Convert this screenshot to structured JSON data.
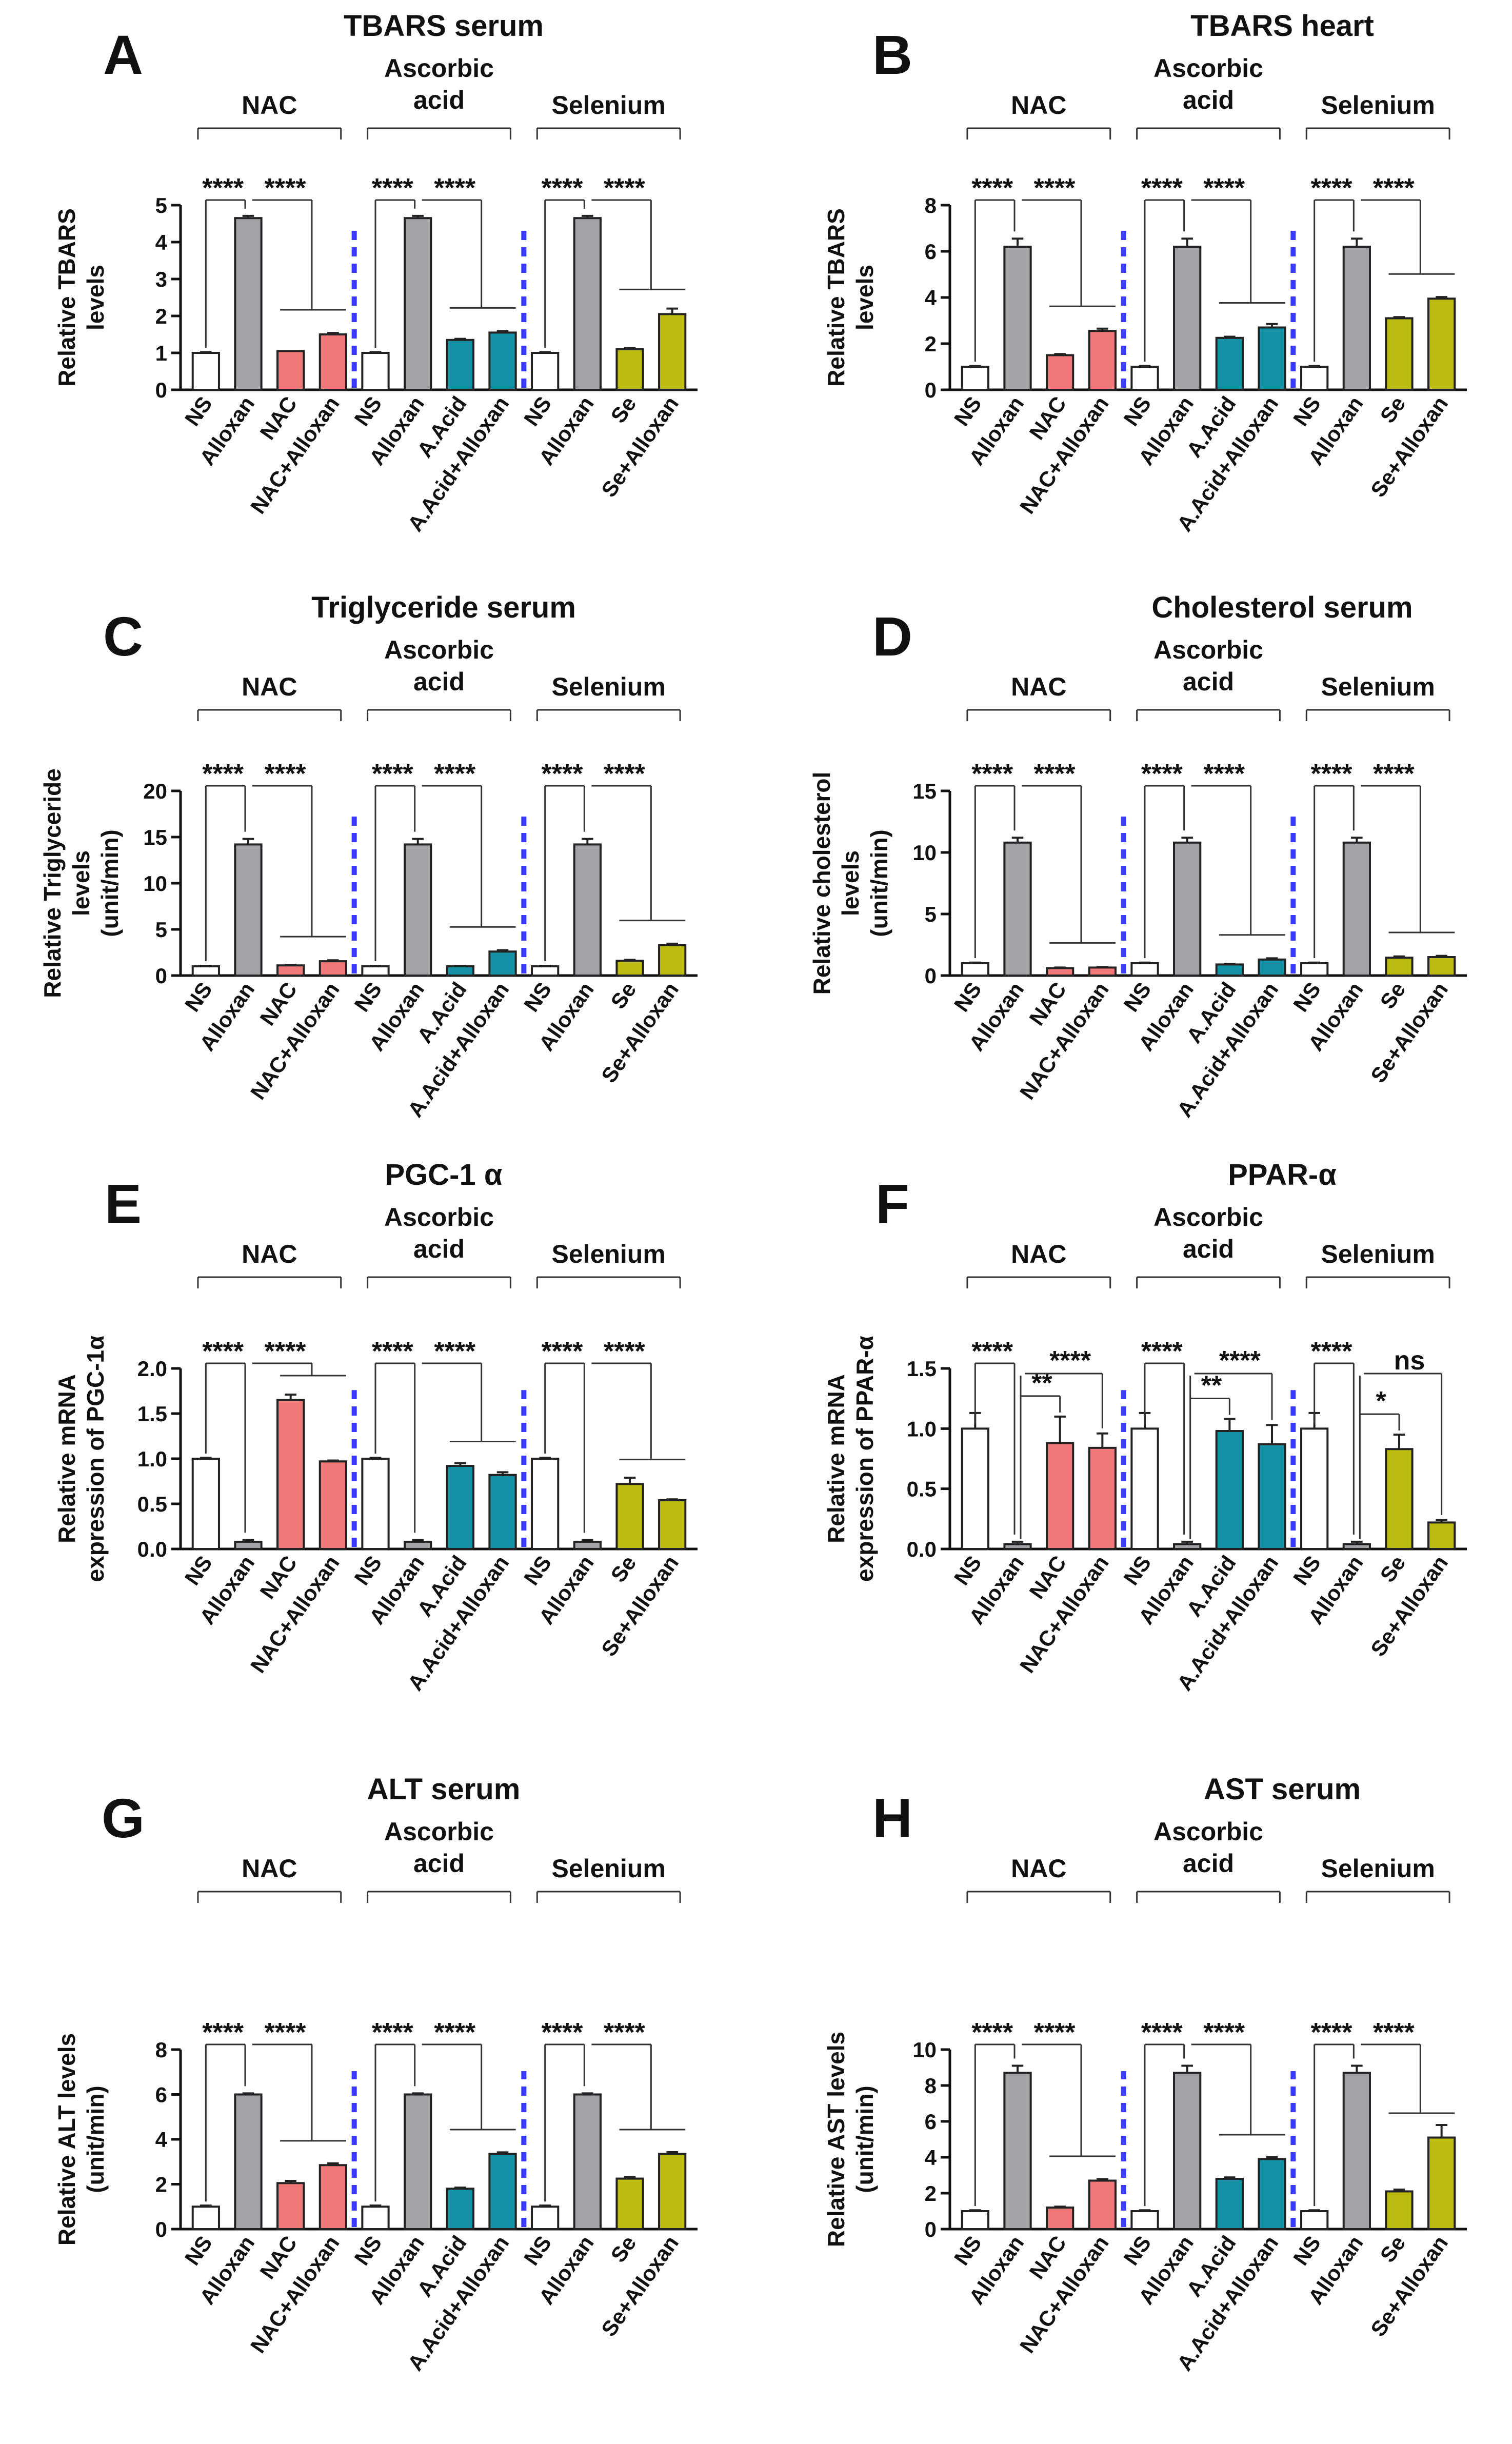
{
  "colors": {
    "NS": "#ffffff",
    "Alloxan": "#a3a3a7",
    "NAC": "#f07878",
    "NAC+Alloxan": "#f07878",
    "A.Acid": "#1591a6",
    "A.Acid+Alloxan": "#1591a6",
    "Se": "#bcbb10",
    "Se+Alloxan": "#bcbb10",
    "divider": "#3b3bff"
  },
  "chart_data": [
    {
      "panel": "A",
      "type": "bar",
      "title": "TBARS serum",
      "ylabel": [
        "Relative TBARS",
        "levels"
      ],
      "ylim": [
        0,
        5
      ],
      "yticks": [
        "0",
        "1",
        "2",
        "3",
        "4",
        "5"
      ],
      "groups": [
        "NAC",
        "Ascorbic|acid",
        "Selenium"
      ],
      "categories": [
        "NS",
        "Alloxan",
        "NAC",
        "NAC+Alloxan",
        "NS",
        "Alloxan",
        "A.Acid",
        "A.Acid+Alloxan",
        "NS",
        "Alloxan",
        "Se",
        "Se+Alloxan"
      ],
      "values": [
        1.0,
        4.65,
        1.05,
        1.5,
        1.0,
        4.65,
        1.35,
        1.55,
        1.0,
        4.65,
        1.1,
        2.05
      ],
      "errors": [
        0.02,
        0.06,
        0,
        0.04,
        0.02,
        0.06,
        0.03,
        0.04,
        0.02,
        0.06,
        0.03,
        0.15
      ],
      "stars": [
        "****",
        "****",
        "****",
        "****",
        "****",
        "****"
      ]
    },
    {
      "panel": "B",
      "type": "bar",
      "title": "TBARS heart",
      "ylabel": [
        "Relative TBARS",
        "levels"
      ],
      "ylim": [
        0,
        8
      ],
      "yticks": [
        "0",
        "2",
        "4",
        "6",
        "8"
      ],
      "groups": [
        "NAC",
        "Ascorbic|acid",
        "Selenium"
      ],
      "categories": [
        "NS",
        "Alloxan",
        "NAC",
        "NAC+Alloxan",
        "NS",
        "Alloxan",
        "A.Acid",
        "A.Acid+Alloxan",
        "NS",
        "Alloxan",
        "Se",
        "Se+Alloxan"
      ],
      "values": [
        1.0,
        6.2,
        1.5,
        2.55,
        1.0,
        6.2,
        2.25,
        2.7,
        1.0,
        6.2,
        3.1,
        3.95
      ],
      "errors": [
        0.03,
        0.35,
        0.05,
        0.1,
        0.03,
        0.35,
        0.05,
        0.15,
        0.03,
        0.35,
        0.05,
        0.07
      ],
      "stars": [
        "****",
        "****",
        "****",
        "****",
        "****",
        "****"
      ]
    },
    {
      "panel": "C",
      "type": "bar",
      "title": "Triglyceride serum",
      "ylabel": [
        "Relative Triglyceride",
        "levels",
        "(unit/min)"
      ],
      "ylim": [
        0,
        20
      ],
      "yticks": [
        "0",
        "5",
        "10",
        "15",
        "20"
      ],
      "groups": [
        "NAC",
        "Ascorbic|acid",
        "Selenium"
      ],
      "categories": [
        "NS",
        "Alloxan",
        "NAC",
        "NAC+Alloxan",
        "NS",
        "Alloxan",
        "A.Acid",
        "A.Acid+Alloxan",
        "NS",
        "Alloxan",
        "Se",
        "Se+Alloxan"
      ],
      "values": [
        1.0,
        14.2,
        1.1,
        1.55,
        1.0,
        14.2,
        1.0,
        2.6,
        1.0,
        14.2,
        1.6,
        3.3
      ],
      "errors": [
        0.05,
        0.6,
        0.05,
        0.1,
        0.05,
        0.6,
        0.05,
        0.15,
        0.05,
        0.6,
        0.1,
        0.15
      ],
      "stars": [
        "****",
        "****",
        "****",
        "****",
        "****",
        "****"
      ]
    },
    {
      "panel": "D",
      "type": "bar",
      "title": "Cholesterol serum",
      "ylabel": [
        "Relative cholesterol",
        "levels",
        "(unit/min)"
      ],
      "ylim": [
        0,
        15
      ],
      "yticks": [
        "0",
        "5",
        "10",
        "15"
      ],
      "groups": [
        "NAC",
        "Ascorbic|acid",
        "Selenium"
      ],
      "categories": [
        "NS",
        "Alloxan",
        "NAC",
        "NAC+Alloxan",
        "NS",
        "Alloxan",
        "A.Acid",
        "A.Acid+Alloxan",
        "NS",
        "Alloxan",
        "Se",
        "Se+Alloxan"
      ],
      "values": [
        1.0,
        10.8,
        0.6,
        0.65,
        1.0,
        10.8,
        0.9,
        1.3,
        1.0,
        10.8,
        1.45,
        1.5
      ],
      "errors": [
        0.05,
        0.4,
        0.05,
        0.05,
        0.05,
        0.4,
        0.05,
        0.1,
        0.05,
        0.4,
        0.1,
        0.1
      ],
      "stars": [
        "****",
        "****",
        "****",
        "****",
        "****",
        "****"
      ]
    },
    {
      "panel": "E",
      "type": "bar",
      "title": "PGC-1 α",
      "ylabel": [
        "Relative mRNA",
        "expression of PGC-1α"
      ],
      "ylim": [
        0,
        2.0
      ],
      "yticks": [
        "0.0",
        "0.5",
        "1.0",
        "1.5",
        "2.0"
      ],
      "groups": [
        "NAC",
        "Ascorbic|acid",
        "Selenium"
      ],
      "categories": [
        "NS",
        "Alloxan",
        "NAC",
        "NAC+Alloxan",
        "NS",
        "Alloxan",
        "A.Acid",
        "A.Acid+Alloxan",
        "NS",
        "Alloxan",
        "Se",
        "Se+Alloxan"
      ],
      "values": [
        1.0,
        0.08,
        1.65,
        0.97,
        1.0,
        0.08,
        0.92,
        0.82,
        1.0,
        0.08,
        0.72,
        0.54
      ],
      "errors": [
        0.01,
        0.02,
        0.06,
        0.01,
        0.01,
        0.02,
        0.03,
        0.03,
        0.01,
        0.02,
        0.07,
        0.01
      ],
      "stars": [
        "****",
        "****",
        "****",
        "****",
        "****",
        "****"
      ]
    },
    {
      "panel": "F",
      "type": "bar",
      "title": "PPAR-α",
      "ylabel": [
        "Relative mRNA",
        "expression of PPAR-α"
      ],
      "ylim": [
        0,
        1.5
      ],
      "yticks": [
        "0.0",
        "0.5",
        "1.0",
        "1.5"
      ],
      "groups": [
        "NAC",
        "Ascorbic|acid",
        "Selenium"
      ],
      "categories": [
        "NS",
        "Alloxan",
        "NAC",
        "NAC+Alloxan",
        "NS",
        "Alloxan",
        "A.Acid",
        "A.Acid+Alloxan",
        "NS",
        "Alloxan",
        "Se",
        "Se+Alloxan"
      ],
      "values": [
        1.0,
        0.04,
        0.88,
        0.84,
        1.0,
        0.04,
        0.98,
        0.87,
        1.0,
        0.04,
        0.83,
        0.22
      ],
      "errors": [
        0.13,
        0.02,
        0.22,
        0.12,
        0.13,
        0.02,
        0.1,
        0.16,
        0.13,
        0.02,
        0.12,
        0.02
      ],
      "stars": [
        "****",
        "**",
        "****",
        "****",
        "**",
        "****",
        "****",
        "*",
        "ns"
      ]
    },
    {
      "panel": "G",
      "type": "bar",
      "title": "ALT serum",
      "ylabel": [
        "Relative ALT levels",
        "(unit/min)"
      ],
      "ylim": [
        0,
        8
      ],
      "yticks": [
        "0",
        "2",
        "4",
        "6",
        "8"
      ],
      "groups": [
        "NAC",
        "Ascorbic|acid",
        "Selenium"
      ],
      "categories": [
        "NS",
        "Alloxan",
        "NAC",
        "NAC+Alloxan",
        "NS",
        "Alloxan",
        "A.Acid",
        "A.Acid+Alloxan",
        "NS",
        "Alloxan",
        "Se",
        "Se+Alloxan"
      ],
      "values": [
        1.0,
        6.0,
        2.05,
        2.85,
        1.0,
        6.0,
        1.8,
        3.35,
        1.0,
        6.0,
        2.25,
        3.35
      ],
      "errors": [
        0.05,
        0.05,
        0.1,
        0.08,
        0.05,
        0.05,
        0.05,
        0.07,
        0.05,
        0.05,
        0.07,
        0.08
      ],
      "stars": [
        "****",
        "****",
        "****",
        "****",
        "****",
        "****"
      ]
    },
    {
      "panel": "H",
      "type": "bar",
      "title": "AST serum",
      "ylabel": [
        "Relative AST levels",
        "(unit/min)"
      ],
      "ylim": [
        0,
        10
      ],
      "yticks": [
        "0",
        "2",
        "4",
        "6",
        "8",
        "10"
      ],
      "groups": [
        "NAC",
        "Ascorbic|acid",
        "Selenium"
      ],
      "categories": [
        "NS",
        "Alloxan",
        "NAC",
        "NAC+Alloxan",
        "NS",
        "Alloxan",
        "A.Acid",
        "A.Acid+Alloxan",
        "NS",
        "Alloxan",
        "Se",
        "Se+Alloxan"
      ],
      "values": [
        1.0,
        8.7,
        1.2,
        2.7,
        1.0,
        8.7,
        2.8,
        3.9,
        1.0,
        8.7,
        2.1,
        5.1
      ],
      "errors": [
        0.05,
        0.4,
        0.05,
        0.08,
        0.05,
        0.4,
        0.08,
        0.1,
        0.05,
        0.4,
        0.1,
        0.7
      ],
      "stars": [
        "****",
        "****",
        "****",
        "****",
        "****",
        "****"
      ]
    }
  ]
}
